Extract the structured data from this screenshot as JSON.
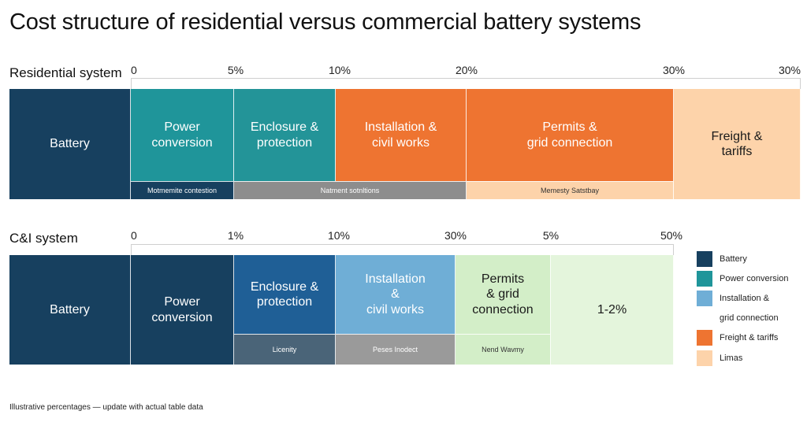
{
  "title": "Cost structure of residential versus commercial battery systems",
  "footnote": "Illustrative percentages — update with actual table data",
  "colors": {
    "battery": "#17405f",
    "power_conversion": "#1f959a",
    "enclosure_teal": "#239498",
    "enclosure_blue": "#1f5f96",
    "installation_orange": "#ee7431",
    "installation_lightblue": "#6faed6",
    "permits_green": "#d3eec8",
    "freight_peach": "#fdd3aa",
    "lightgreen": "#e4f5dc",
    "gray": "#8d8d8d"
  },
  "legend": [
    {
      "label": "Battery",
      "color": "#17405f"
    },
    {
      "label": "Power conversion",
      "color": "#1f959a"
    },
    {
      "label": "Installation &",
      "color": "#6faed6"
    },
    {
      "label": "grid connection",
      "color": ""
    },
    {
      "label": "Freight & tariffs",
      "color": "#ee7431"
    },
    {
      "label": "Limas",
      "color": "#fdd3aa"
    }
  ],
  "chart_data": [
    {
      "type": "bar",
      "row_label": "Residential system",
      "ticks": [
        "0",
        "5%",
        "10%",
        "20%",
        "30%",
        "30%"
      ],
      "segments": [
        {
          "label": "Battery",
          "color": "#17405f",
          "text": "light"
        },
        {
          "label": "Power\nconversion",
          "color": "#1f959a",
          "text": "light"
        },
        {
          "label": "Enclosure &\nprotection",
          "color": "#239498",
          "text": "light"
        },
        {
          "label": "Installation &\ncivil works",
          "color": "#ee7431",
          "text": "light"
        },
        {
          "label": "Permits &\ngrid connection",
          "color": "#ee7431",
          "text": "light"
        },
        {
          "label": "Freight &\ntariffs",
          "color": "#fdd3aa",
          "text": "dark"
        }
      ],
      "sublabels": [
        {
          "label": "Motmemite contestion",
          "from": 1,
          "to": 2,
          "color": "#17405f",
          "text": "light"
        },
        {
          "label": "Natment sotnltions",
          "from": 2,
          "to": 4,
          "color": "#8d8d8d",
          "text": "light"
        },
        {
          "label": "Memesty Satstbay",
          "from": 4,
          "to": 5,
          "color": "#fdd3aa",
          "text": "dark"
        }
      ]
    },
    {
      "type": "bar",
      "row_label": "C&I system",
      "ticks": [
        "0",
        "1%",
        "10%",
        "30%",
        "5%",
        "50%"
      ],
      "segments": [
        {
          "label": "Battery",
          "color": "#17405f",
          "text": "light"
        },
        {
          "label": "Power\nconversion",
          "color": "#17405f",
          "text": "light"
        },
        {
          "label": "Enclosure &\nprotection",
          "color": "#1f5f96",
          "text": "light"
        },
        {
          "label": "Installation\n&\ncivil works",
          "color": "#6faed6",
          "text": "light"
        },
        {
          "label": "Permits\n& grid\nconnection",
          "color": "#d3eec8",
          "text": "dark"
        },
        {
          "label": "1-2%",
          "color": "#e4f5dc",
          "text": "dark"
        }
      ],
      "sublabels": [
        {
          "label": "Licenity",
          "from": 2,
          "to": 3,
          "color": "#4a6478",
          "text": "light"
        },
        {
          "label": "Peses Inodect",
          "from": 3,
          "to": 4,
          "color": "#9a9a9a",
          "text": "light"
        },
        {
          "label": "Nend Wavmy",
          "from": 4,
          "to": 5,
          "color": "#d3eec8",
          "text": "dark"
        }
      ]
    }
  ]
}
